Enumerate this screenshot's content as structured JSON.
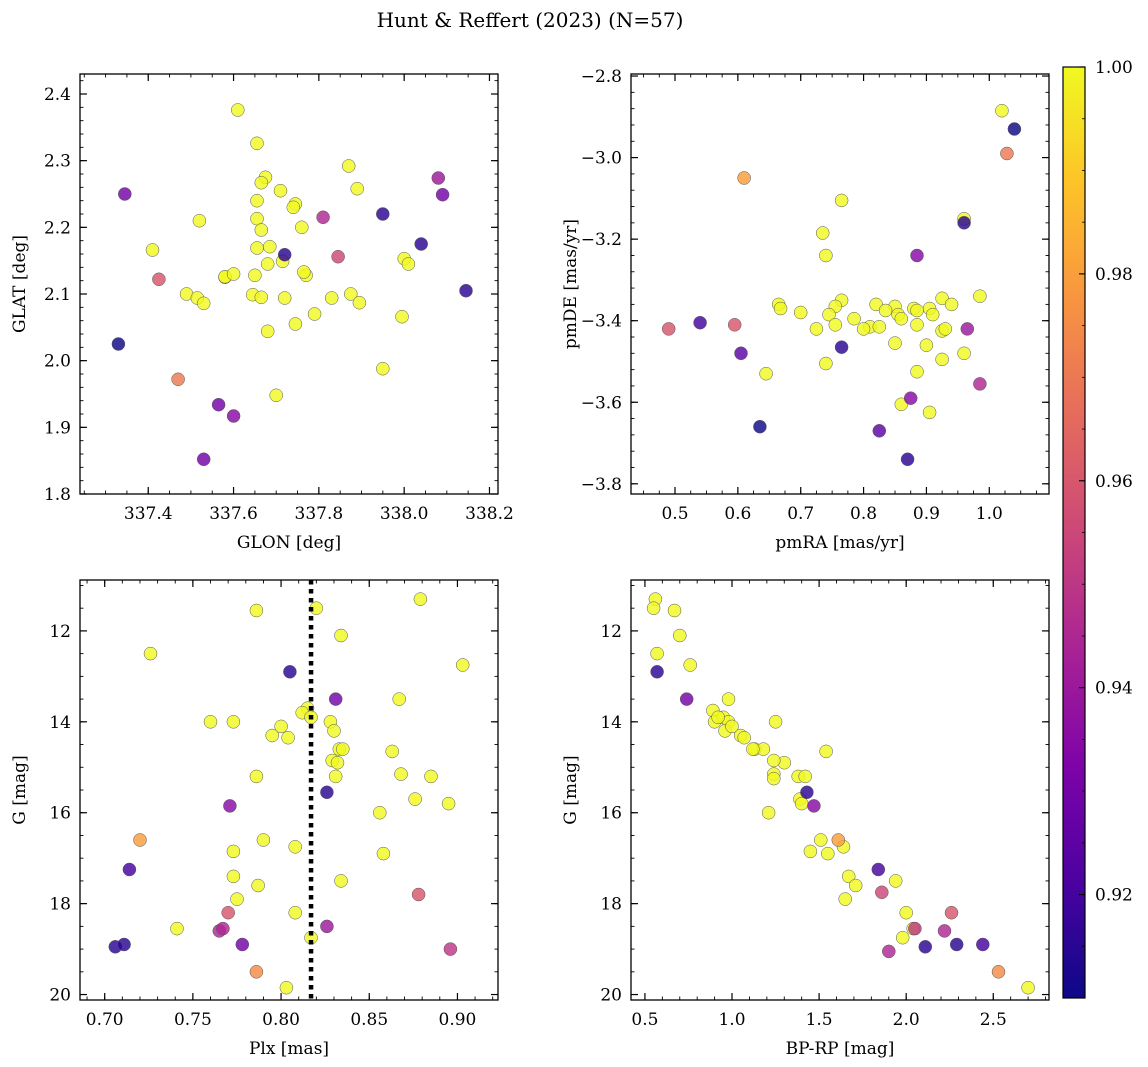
{
  "title": "Hunt & Reffert (2023) (N=57)",
  "colorbar": {
    "min": 0.91,
    "max": 1.0,
    "ticks": [
      0.92,
      0.94,
      0.96,
      0.98,
      1.0
    ],
    "tick_labels": [
      "0.92",
      "0.94",
      "0.96",
      "0.98",
      "1.00"
    ],
    "colormap": "plasma"
  },
  "chart_data": [
    {
      "type": "scatter",
      "id": "glon-glat",
      "xlabel": "GLON [deg]",
      "ylabel": "GLAT [deg]",
      "xlim": [
        337.24,
        338.22
      ],
      "ylim": [
        1.8,
        2.43
      ],
      "y_inverted": false,
      "xticks": [
        337.4,
        337.6,
        337.8,
        338.0,
        338.2
      ],
      "xtick_labels": [
        "337.4",
        "337.6",
        "337.8",
        "338.0",
        "338.2"
      ],
      "yticks": [
        1.8,
        1.9,
        2.0,
        2.1,
        2.2,
        2.3,
        2.4
      ],
      "ytick_labels": [
        "1.8",
        "1.9",
        "2.0",
        "2.1",
        "2.2",
        "2.3",
        "2.4"
      ],
      "points": [
        [
          337.61,
          2.376,
          1
        ],
        [
          337.655,
          2.326,
          1
        ],
        [
          337.675,
          2.275,
          1
        ],
        [
          337.665,
          2.267,
          1
        ],
        [
          337.71,
          2.255,
          1
        ],
        [
          337.745,
          2.235,
          1
        ],
        [
          337.74,
          2.23,
          1
        ],
        [
          337.89,
          2.258,
          1
        ],
        [
          337.87,
          2.292,
          1
        ],
        [
          337.655,
          2.24,
          1
        ],
        [
          337.655,
          2.213,
          1
        ],
        [
          337.52,
          2.21,
          1
        ],
        [
          337.665,
          2.196,
          1
        ],
        [
          337.41,
          2.166,
          1
        ],
        [
          337.655,
          2.169,
          1
        ],
        [
          337.685,
          2.171,
          1
        ],
        [
          337.715,
          2.149,
          1
        ],
        [
          337.68,
          2.145,
          1
        ],
        [
          337.58,
          2.125,
          1
        ],
        [
          337.58,
          2.126,
          1
        ],
        [
          337.65,
          2.128,
          1
        ],
        [
          337.77,
          2.128,
          1
        ],
        [
          337.765,
          2.133,
          1
        ],
        [
          338.0,
          2.153,
          1
        ],
        [
          338.01,
          2.145,
          1
        ],
        [
          337.49,
          2.1,
          1
        ],
        [
          337.515,
          2.094,
          1
        ],
        [
          337.53,
          2.086,
          1
        ],
        [
          337.645,
          2.099,
          1
        ],
        [
          337.665,
          2.095,
          1
        ],
        [
          337.72,
          2.094,
          1
        ],
        [
          337.83,
          2.094,
          1
        ],
        [
          337.875,
          2.1,
          1
        ],
        [
          337.895,
          2.087,
          1
        ],
        [
          337.68,
          2.044,
          1
        ],
        [
          337.745,
          2.055,
          1
        ],
        [
          337.995,
          2.066,
          1
        ],
        [
          337.95,
          1.988,
          1
        ],
        [
          337.7,
          1.948,
          1
        ],
        [
          337.345,
          2.25,
          0.93
        ],
        [
          337.72,
          2.159,
          0.915
        ],
        [
          337.81,
          2.215,
          0.945
        ],
        [
          337.845,
          2.156,
          0.955
        ],
        [
          337.95,
          2.22,
          0.915
        ],
        [
          338.04,
          2.175,
          0.915
        ],
        [
          338.08,
          2.274,
          0.94
        ],
        [
          338.09,
          2.249,
          0.93
        ],
        [
          338.145,
          2.105,
          0.915
        ],
        [
          337.33,
          2.025,
          0.91
        ],
        [
          337.425,
          2.122,
          0.96
        ],
        [
          337.47,
          1.972,
          0.97
        ],
        [
          337.565,
          1.934,
          0.93
        ],
        [
          337.6,
          1.917,
          0.935
        ],
        [
          337.53,
          1.852,
          0.93
        ],
        [
          337.76,
          2.2,
          1
        ],
        [
          337.6,
          2.13,
          1
        ],
        [
          337.79,
          2.07,
          1
        ]
      ]
    },
    {
      "type": "scatter",
      "id": "pmra-pmde",
      "xlabel": "pmRA [mas/yr]",
      "ylabel": "pmDE [mas/yr]",
      "xlim": [
        0.43,
        1.095
      ],
      "ylim": [
        -3.825,
        -2.795
      ],
      "y_inverted": false,
      "xticks": [
        0.5,
        0.6,
        0.7,
        0.8,
        0.9,
        1.0
      ],
      "xtick_labels": [
        "0.5",
        "0.6",
        "0.7",
        "0.8",
        "0.9",
        "1.0"
      ],
      "yticks": [
        -3.8,
        -3.6,
        -3.4,
        -3.2,
        -3.0,
        -2.8
      ],
      "ytick_labels": [
        "−3.8",
        "−3.6",
        "−3.4",
        "−3.2",
        "−3.0",
        "−2.8"
      ],
      "points": [
        [
          1.02,
          -2.885,
          1
        ],
        [
          0.765,
          -3.105,
          1
        ],
        [
          0.96,
          -3.15,
          1
        ],
        [
          0.735,
          -3.185,
          1
        ],
        [
          0.74,
          -3.24,
          1
        ],
        [
          0.985,
          -3.34,
          1
        ],
        [
          0.665,
          -3.36,
          1
        ],
        [
          0.668,
          -3.37,
          1
        ],
        [
          0.765,
          -3.35,
          1
        ],
        [
          0.755,
          -3.365,
          1
        ],
        [
          0.82,
          -3.36,
          1
        ],
        [
          0.85,
          -3.365,
          1
        ],
        [
          0.88,
          -3.37,
          1
        ],
        [
          0.905,
          -3.37,
          1
        ],
        [
          0.925,
          -3.345,
          1
        ],
        [
          0.94,
          -3.36,
          1
        ],
        [
          0.7,
          -3.38,
          1
        ],
        [
          0.745,
          -3.385,
          1
        ],
        [
          0.785,
          -3.395,
          1
        ],
        [
          0.835,
          -3.375,
          1
        ],
        [
          0.855,
          -3.385,
          1
        ],
        [
          0.91,
          -3.385,
          1
        ],
        [
          0.885,
          -3.375,
          1
        ],
        [
          0.725,
          -3.42,
          1
        ],
        [
          0.755,
          -3.41,
          1
        ],
        [
          0.81,
          -3.415,
          1
        ],
        [
          0.825,
          -3.415,
          1
        ],
        [
          0.885,
          -3.41,
          1
        ],
        [
          0.925,
          -3.425,
          1
        ],
        [
          0.93,
          -3.42,
          1
        ],
        [
          0.85,
          -3.455,
          1
        ],
        [
          0.9,
          -3.46,
          1
        ],
        [
          0.96,
          -3.48,
          1
        ],
        [
          0.74,
          -3.505,
          1
        ],
        [
          0.925,
          -3.495,
          1
        ],
        [
          0.645,
          -3.53,
          1
        ],
        [
          0.885,
          -3.525,
          1
        ],
        [
          0.86,
          -3.605,
          1
        ],
        [
          0.905,
          -3.625,
          1
        ],
        [
          1.04,
          -2.93,
          0.91
        ],
        [
          0.96,
          -3.16,
          0.915
        ],
        [
          0.885,
          -3.24,
          0.935
        ],
        [
          0.54,
          -3.405,
          0.92
        ],
        [
          0.605,
          -3.48,
          0.925
        ],
        [
          0.765,
          -3.465,
          0.915
        ],
        [
          0.965,
          -3.42,
          0.94
        ],
        [
          0.985,
          -3.555,
          0.945
        ],
        [
          0.875,
          -3.59,
          0.935
        ],
        [
          0.825,
          -3.67,
          0.925
        ],
        [
          0.635,
          -3.66,
          0.91
        ],
        [
          0.87,
          -3.74,
          0.915
        ],
        [
          0.49,
          -3.42,
          0.96
        ],
        [
          0.595,
          -3.41,
          0.96
        ],
        [
          0.61,
          -3.05,
          0.98
        ],
        [
          1.028,
          -2.99,
          0.97
        ],
        [
          0.86,
          -3.395,
          1
        ],
        [
          0.8,
          -3.42,
          1
        ]
      ]
    },
    {
      "type": "scatter",
      "id": "plx-g",
      "xlabel": "Plx [mas]",
      "ylabel": "G [mag]",
      "xlim": [
        0.686,
        0.923
      ],
      "ylim": [
        20.12,
        10.88
      ],
      "y_inverted": true,
      "vline": 0.817,
      "xticks": [
        0.7,
        0.75,
        0.8,
        0.85,
        0.9
      ],
      "xtick_labels": [
        "0.70",
        "0.75",
        "0.80",
        "0.85",
        "0.90"
      ],
      "yticks": [
        12,
        14,
        16,
        18,
        20
      ],
      "ytick_labels": [
        "12",
        "14",
        "16",
        "18",
        "20"
      ],
      "points": [
        [
          0.879,
          11.3,
          1
        ],
        [
          0.82,
          11.5,
          1
        ],
        [
          0.786,
          11.55,
          1
        ],
        [
          0.834,
          12.1,
          1
        ],
        [
          0.726,
          12.5,
          1
        ],
        [
          0.903,
          12.75,
          1
        ],
        [
          0.867,
          13.5,
          1
        ],
        [
          0.815,
          13.7,
          1
        ],
        [
          0.76,
          14.0,
          1
        ],
        [
          0.773,
          14.0,
          1
        ],
        [
          0.812,
          13.8,
          1
        ],
        [
          0.817,
          13.9,
          1
        ],
        [
          0.828,
          14.0,
          1
        ],
        [
          0.83,
          14.2,
          1
        ],
        [
          0.833,
          14.6,
          1
        ],
        [
          0.835,
          14.6,
          1
        ],
        [
          0.795,
          14.3,
          1
        ],
        [
          0.804,
          14.35,
          1
        ],
        [
          0.863,
          14.65,
          1
        ],
        [
          0.829,
          14.85,
          1
        ],
        [
          0.832,
          14.9,
          1
        ],
        [
          0.831,
          15.2,
          1
        ],
        [
          0.786,
          15.2,
          1
        ],
        [
          0.868,
          15.15,
          1
        ],
        [
          0.885,
          15.2,
          1
        ],
        [
          0.876,
          15.7,
          1
        ],
        [
          0.895,
          15.8,
          1
        ],
        [
          0.856,
          16.0,
          1
        ],
        [
          0.79,
          16.6,
          1
        ],
        [
          0.808,
          16.75,
          1
        ],
        [
          0.773,
          16.85,
          1
        ],
        [
          0.858,
          16.9,
          1
        ],
        [
          0.773,
          17.4,
          1
        ],
        [
          0.787,
          17.6,
          1
        ],
        [
          0.834,
          17.5,
          1
        ],
        [
          0.775,
          17.9,
          1
        ],
        [
          0.808,
          18.2,
          1
        ],
        [
          0.741,
          18.55,
          1
        ],
        [
          0.817,
          18.75,
          1
        ],
        [
          0.803,
          19.85,
          1
        ],
        [
          0.805,
          12.9,
          0.915
        ],
        [
          0.831,
          13.5,
          0.93
        ],
        [
          0.826,
          15.55,
          0.915
        ],
        [
          0.771,
          15.85,
          0.935
        ],
        [
          0.714,
          17.25,
          0.92
        ],
        [
          0.706,
          18.95,
          0.915
        ],
        [
          0.711,
          18.9,
          0.915
        ],
        [
          0.778,
          18.9,
          0.93
        ],
        [
          0.765,
          18.6,
          0.945
        ],
        [
          0.767,
          18.55,
          0.945
        ],
        [
          0.826,
          18.5,
          0.94
        ],
        [
          0.77,
          18.2,
          0.96
        ],
        [
          0.878,
          17.8,
          0.96
        ],
        [
          0.896,
          19.0,
          0.95
        ],
        [
          0.72,
          16.6,
          0.98
        ],
        [
          0.786,
          19.5,
          0.975
        ],
        [
          0.8,
          14.1,
          1
        ]
      ]
    },
    {
      "type": "scatter",
      "id": "bprp-g",
      "xlabel": "BP-RP [mag]",
      "ylabel": "G [mag]",
      "xlim": [
        0.42,
        2.82
      ],
      "ylim": [
        20.12,
        10.88
      ],
      "y_inverted": true,
      "xticks": [
        0.5,
        1.0,
        1.5,
        2.0,
        2.5
      ],
      "xtick_labels": [
        "0.5",
        "1.0",
        "1.5",
        "2.0",
        "2.5"
      ],
      "yticks": [
        12,
        14,
        16,
        18,
        20
      ],
      "ytick_labels": [
        "12",
        "14",
        "16",
        "18",
        "20"
      ],
      "points": [
        [
          0.56,
          11.3,
          1
        ],
        [
          0.55,
          11.5,
          1
        ],
        [
          0.67,
          11.55,
          1
        ],
        [
          0.7,
          12.1,
          1
        ],
        [
          0.57,
          12.5,
          1
        ],
        [
          0.76,
          12.75,
          1
        ],
        [
          0.98,
          13.5,
          1
        ],
        [
          0.89,
          13.75,
          1
        ],
        [
          0.9,
          14.0,
          1
        ],
        [
          0.95,
          13.9,
          1
        ],
        [
          0.98,
          14.0,
          1
        ],
        [
          1.25,
          14.0,
          1
        ],
        [
          0.96,
          14.2,
          1
        ],
        [
          1.05,
          14.3,
          1
        ],
        [
          1.07,
          14.35,
          1
        ],
        [
          1.13,
          14.6,
          1
        ],
        [
          1.18,
          14.6,
          1
        ],
        [
          1.3,
          14.9,
          1
        ],
        [
          1.24,
          14.85,
          1
        ],
        [
          1.54,
          14.65,
          1
        ],
        [
          1.24,
          15.15,
          1
        ],
        [
          1.24,
          15.25,
          1
        ],
        [
          1.38,
          15.2,
          1
        ],
        [
          1.42,
          15.2,
          1
        ],
        [
          1.39,
          15.7,
          1
        ],
        [
          1.4,
          15.8,
          1
        ],
        [
          1.21,
          16.0,
          1
        ],
        [
          1.51,
          16.6,
          1
        ],
        [
          1.64,
          16.75,
          1
        ],
        [
          1.55,
          16.9,
          1
        ],
        [
          1.45,
          16.85,
          1
        ],
        [
          1.67,
          17.4,
          1
        ],
        [
          1.71,
          17.6,
          1
        ],
        [
          1.94,
          17.5,
          1
        ],
        [
          1.65,
          17.9,
          1
        ],
        [
          2.0,
          18.2,
          1
        ],
        [
          2.04,
          18.55,
          1
        ],
        [
          1.98,
          18.75,
          1
        ],
        [
          2.7,
          19.85,
          1
        ],
        [
          0.57,
          12.9,
          0.915
        ],
        [
          0.74,
          13.5,
          0.93
        ],
        [
          1.43,
          15.55,
          0.915
        ],
        [
          1.47,
          15.85,
          0.935
        ],
        [
          1.84,
          17.25,
          0.92
        ],
        [
          2.11,
          18.95,
          0.915
        ],
        [
          2.29,
          18.9,
          0.915
        ],
        [
          2.44,
          18.9,
          0.92
        ],
        [
          2.22,
          18.6,
          0.945
        ],
        [
          2.05,
          18.55,
          0.95
        ],
        [
          1.9,
          19.05,
          0.945
        ],
        [
          1.86,
          17.75,
          0.955
        ],
        [
          2.26,
          18.2,
          0.96
        ],
        [
          1.61,
          16.6,
          0.98
        ],
        [
          2.53,
          19.5,
          0.975
        ],
        [
          1.0,
          14.1,
          1
        ],
        [
          1.12,
          14.6,
          1
        ],
        [
          0.92,
          13.9,
          1
        ]
      ]
    }
  ]
}
